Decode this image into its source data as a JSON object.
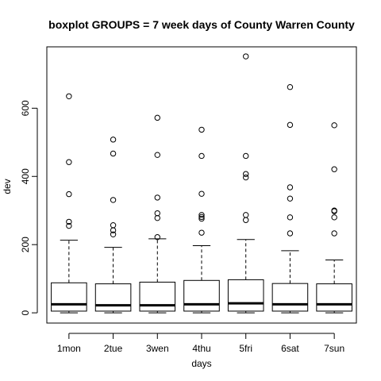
{
  "chart_data": {
    "type": "boxplot",
    "title": "boxplot GROUPS = 7 week days of County Warren County",
    "xlabel": "days",
    "ylabel": "dev",
    "categories": [
      "1mon",
      "2tue",
      "3wen",
      "4thu",
      "5fri",
      "6sat",
      "7sun"
    ],
    "yticks": [
      0,
      200,
      400,
      600
    ],
    "ylim": [
      -30,
      780
    ],
    "boxes": [
      {
        "category": "1mon",
        "low": 0,
        "q1": 5,
        "median": 25,
        "q3": 88,
        "high": 213,
        "outliers": [
          255,
          267,
          348,
          442,
          635
        ]
      },
      {
        "category": "2tue",
        "low": 0,
        "q1": 5,
        "median": 22,
        "q3": 85,
        "high": 192,
        "outliers": [
          230,
          242,
          257,
          331,
          467,
          508
        ]
      },
      {
        "category": "3wen",
        "low": 0,
        "q1": 5,
        "median": 22,
        "q3": 90,
        "high": 217,
        "outliers": [
          222,
          278,
          292,
          338,
          463,
          572
        ]
      },
      {
        "category": "4thu",
        "low": 0,
        "q1": 5,
        "median": 25,
        "q3": 95,
        "high": 197,
        "outliers": [
          235,
          276,
          281,
          287,
          349,
          460,
          537
        ]
      },
      {
        "category": "5fri",
        "low": 0,
        "q1": 5,
        "median": 28,
        "q3": 97,
        "high": 215,
        "outliers": [
          272,
          287,
          397,
          407,
          460,
          752
        ]
      },
      {
        "category": "6sat",
        "low": 0,
        "q1": 5,
        "median": 25,
        "q3": 86,
        "high": 182,
        "outliers": [
          233,
          280,
          335,
          368,
          551,
          662
        ]
      },
      {
        "category": "7sun",
        "low": 0,
        "q1": 5,
        "median": 25,
        "q3": 85,
        "high": 155,
        "outliers": [
          233,
          280,
          298,
          300,
          421,
          550
        ]
      }
    ]
  }
}
